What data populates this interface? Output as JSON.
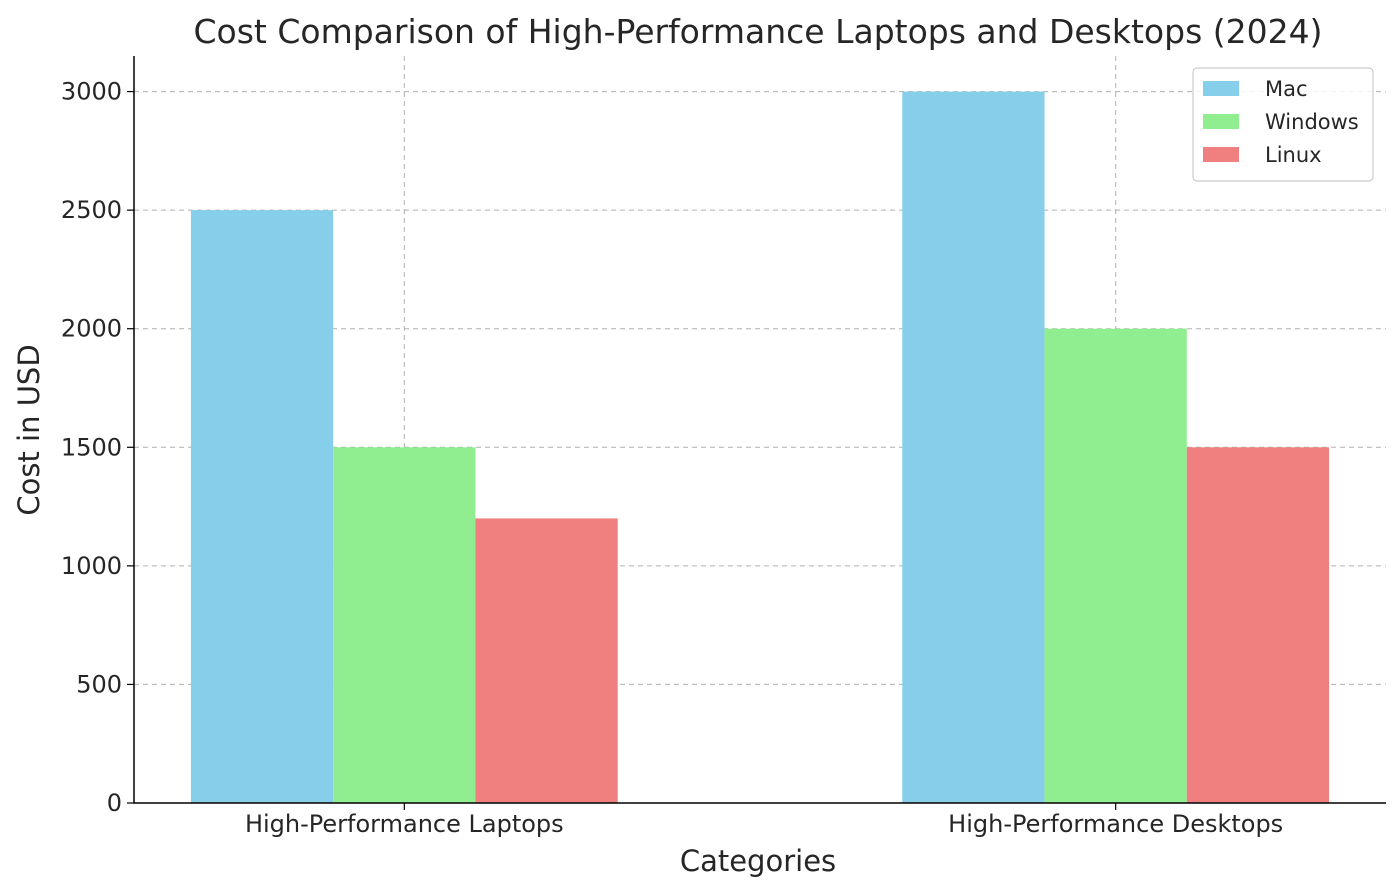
{
  "chart_data": {
    "type": "bar",
    "title": "Cost Comparison of High-Performance Laptops and Desktops (2024)",
    "xlabel": "Categories",
    "ylabel": "Cost in USD",
    "categories": [
      "High-Performance Laptops",
      "High-Performance Desktops"
    ],
    "series": [
      {
        "name": "Mac",
        "color": "#87ceeb",
        "values": [
          2500,
          3000
        ]
      },
      {
        "name": "Windows",
        "color": "#90ee90",
        "values": [
          1500,
          2000
        ]
      },
      {
        "name": "Linux",
        "color": "#f08080",
        "values": [
          1200,
          1500
        ]
      }
    ],
    "ylim": [
      0,
      3150
    ],
    "yticks": [
      0,
      500,
      1000,
      1500,
      2000,
      2500,
      3000
    ],
    "grid": true,
    "legend_position": "top-right"
  }
}
